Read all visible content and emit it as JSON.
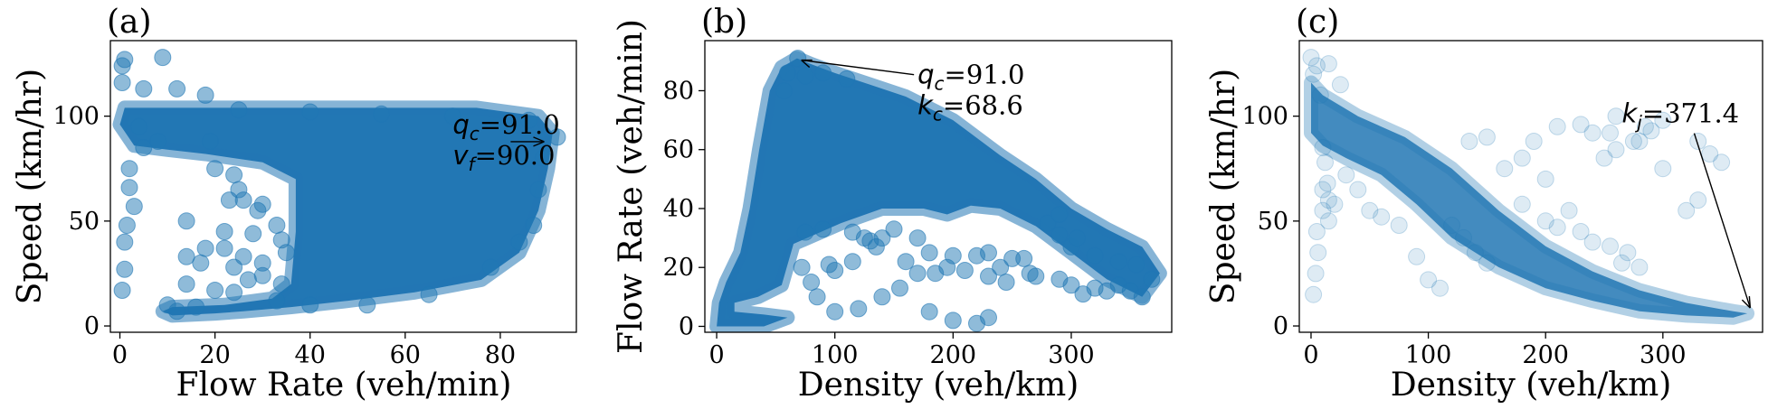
{
  "chart_data": [
    {
      "type": "scatter",
      "panel": "(a)",
      "xlabel": "Flow Rate (veh/min)",
      "ylabel": "Speed (km/hr)",
      "xlim": [
        -2,
        96
      ],
      "ylim": [
        -3,
        136
      ],
      "xticks": [
        0,
        20,
        40,
        60,
        80
      ],
      "yticks": [
        0,
        50,
        100
      ],
      "annotation": {
        "line1": "q",
        "sub1": "c",
        "val1": "=91.0",
        "line2": "v",
        "sub2": "f",
        "val2": "=90.0",
        "target": [
          90.0,
          91.0
        ],
        "text_at": [
          70,
          90
        ]
      },
      "series": [
        {
          "values_region": [
            [
              12,
              104
            ],
            [
              28,
              104
            ],
            [
              45,
              104
            ],
            [
              60,
              104
            ],
            [
              75,
              104
            ],
            [
              88,
              100
            ],
            [
              91,
              92
            ],
            [
              90,
              75
            ],
            [
              88,
              55
            ],
            [
              84,
              35
            ],
            [
              76,
              22
            ],
            [
              62,
              16
            ],
            [
              48,
              12
            ],
            [
              36,
              9
            ],
            [
              26,
              7
            ],
            [
              20,
              6
            ],
            [
              11,
              5
            ],
            [
              9,
              7
            ],
            [
              11,
              9
            ],
            [
              22,
              10
            ],
            [
              32,
              13
            ],
            [
              36,
              20
            ],
            [
              37,
              45
            ],
            [
              37,
              70
            ],
            [
              30,
              78
            ],
            [
              18,
              82
            ],
            [
              10,
              84
            ],
            [
              3,
              86
            ],
            [
              0,
              96
            ],
            [
              1,
              104
            ]
          ]
        }
      ],
      "points": [
        [
          0.5,
          124
        ],
        [
          1,
          127
        ],
        [
          9,
          128
        ],
        [
          0.5,
          116
        ],
        [
          5,
          113
        ],
        [
          12,
          113
        ],
        [
          18,
          110
        ],
        [
          2,
          75
        ],
        [
          2,
          66
        ],
        [
          3,
          57
        ],
        [
          1.5,
          48
        ],
        [
          1,
          40
        ],
        [
          1,
          27
        ],
        [
          0.5,
          17
        ],
        [
          4,
          95
        ],
        [
          5,
          85
        ],
        [
          8,
          88
        ],
        [
          20,
          75
        ],
        [
          24,
          72
        ],
        [
          25,
          65
        ],
        [
          26,
          60
        ],
        [
          29,
          55
        ],
        [
          30,
          58
        ],
        [
          33,
          48
        ],
        [
          34,
          41
        ],
        [
          28,
          44
        ],
        [
          23,
          60
        ],
        [
          19,
          88
        ],
        [
          14,
          50
        ],
        [
          22,
          45
        ],
        [
          20,
          17
        ],
        [
          17,
          30
        ],
        [
          14,
          33
        ],
        [
          24,
          28
        ],
        [
          26,
          33
        ],
        [
          18,
          37
        ],
        [
          22,
          37
        ],
        [
          30,
          30
        ],
        [
          34,
          20
        ],
        [
          27,
          22
        ],
        [
          14,
          20
        ],
        [
          24,
          16
        ],
        [
          30,
          24
        ],
        [
          35,
          35
        ],
        [
          33,
          12
        ],
        [
          10,
          10
        ],
        [
          12,
          7
        ],
        [
          16,
          9
        ],
        [
          40,
          10
        ],
        [
          52,
          10
        ],
        [
          65,
          15
        ],
        [
          78,
          28
        ],
        [
          84,
          40
        ],
        [
          87,
          48
        ],
        [
          88,
          65
        ],
        [
          89,
          80
        ],
        [
          92,
          90
        ],
        [
          86,
          98
        ],
        [
          70,
          100
        ],
        [
          55,
          101
        ],
        [
          40,
          102
        ],
        [
          25,
          103
        ]
      ]
    },
    {
      "type": "scatter",
      "panel": "(b)",
      "xlabel": "Density (veh/km)",
      "ylabel": "Flow Rate (veh/min)",
      "xlim": [
        -10,
        385
      ],
      "ylim": [
        -2,
        97
      ],
      "xticks": [
        0,
        100,
        200,
        300
      ],
      "yticks": [
        0,
        20,
        40,
        60,
        80
      ],
      "annotation": {
        "line1": "q",
        "sub1": "c",
        "val1": "=91.0",
        "line2": "k",
        "sub2": "c",
        "val2": "=68.6",
        "target": [
          68.6,
          91.0
        ],
        "text_at": [
          170,
          83
        ]
      },
      "series": [
        {
          "values_region": [
            [
              0,
              0
            ],
            [
              40,
              0
            ],
            [
              60,
              3
            ],
            [
              40,
              4
            ],
            [
              15,
              5
            ],
            [
              15,
              8
            ],
            [
              35,
              10
            ],
            [
              55,
              14
            ],
            [
              65,
              28
            ],
            [
              105,
              35
            ],
            [
              140,
              40
            ],
            [
              175,
              40
            ],
            [
              195,
              38
            ],
            [
              215,
              41
            ],
            [
              240,
              40
            ],
            [
              270,
              34
            ],
            [
              300,
              25
            ],
            [
              330,
              16
            ],
            [
              360,
              10
            ],
            [
              375,
              18
            ],
            [
              360,
              27
            ],
            [
              330,
              33
            ],
            [
              300,
              40
            ],
            [
              270,
              50
            ],
            [
              240,
              58
            ],
            [
              200,
              70
            ],
            [
              160,
              78
            ],
            [
              130,
              82
            ],
            [
              100,
              86
            ],
            [
              80,
              89
            ],
            [
              68,
              91
            ],
            [
              55,
              88
            ],
            [
              45,
              80
            ],
            [
              36,
              60
            ],
            [
              28,
              40
            ],
            [
              20,
              25
            ],
            [
              8,
              15
            ],
            [
              2,
              8
            ]
          ]
        }
      ],
      "points": [
        [
          68.6,
          91
        ],
        [
          75,
          85
        ],
        [
          90,
          86
        ],
        [
          110,
          84
        ],
        [
          60,
          86
        ],
        [
          57,
          80
        ],
        [
          72,
          20
        ],
        [
          80,
          15
        ],
        [
          95,
          21
        ],
        [
          100,
          19
        ],
        [
          115,
          22
        ],
        [
          125,
          30
        ],
        [
          130,
          29
        ],
        [
          140,
          30
        ],
        [
          160,
          22
        ],
        [
          170,
          18
        ],
        [
          185,
          18
        ],
        [
          195,
          20
        ],
        [
          200,
          24
        ],
        [
          210,
          19
        ],
        [
          220,
          24
        ],
        [
          230,
          17
        ],
        [
          240,
          20
        ],
        [
          245,
          15
        ],
        [
          260,
          23
        ],
        [
          265,
          18
        ],
        [
          180,
          5
        ],
        [
          200,
          2
        ],
        [
          220,
          1
        ],
        [
          230,
          3
        ],
        [
          120,
          6
        ],
        [
          140,
          10
        ],
        [
          100,
          5
        ],
        [
          85,
          10
        ],
        [
          155,
          13
        ],
        [
          75,
          32
        ],
        [
          90,
          33
        ],
        [
          115,
          32
        ],
        [
          135,
          27
        ],
        [
          150,
          33
        ],
        [
          170,
          30
        ],
        [
          180,
          25
        ],
        [
          230,
          25
        ],
        [
          250,
          23
        ],
        [
          270,
          17
        ],
        [
          290,
          16
        ],
        [
          300,
          14
        ],
        [
          310,
          11
        ],
        [
          320,
          13
        ],
        [
          330,
          12
        ],
        [
          340,
          14
        ],
        [
          350,
          12
        ],
        [
          360,
          10
        ],
        [
          368,
          16
        ],
        [
          355,
          21
        ],
        [
          340,
          22
        ],
        [
          320,
          24
        ],
        [
          300,
          27
        ],
        [
          290,
          31
        ],
        [
          280,
          35
        ],
        [
          290,
          38
        ],
        [
          305,
          30
        ]
      ]
    },
    {
      "type": "scatter",
      "panel": "(c)",
      "xlabel": "Density (veh/km)",
      "ylabel": "Speed (km/hr)",
      "xlim": [
        -10,
        385
      ],
      "ylim": [
        -3,
        136
      ],
      "xticks": [
        0,
        100,
        200,
        300
      ],
      "yticks": [
        0,
        50,
        100
      ],
      "annotation": {
        "line1": "k",
        "sub1": "j",
        "val1": "=371.4",
        "target": [
          371.4,
          6
        ],
        "text_at": [
          265,
          97
        ]
      },
      "series": [
        {
          "values_region": [
            [
              0,
              116
            ],
            [
              10,
              110
            ],
            [
              40,
              100
            ],
            [
              80,
              90
            ],
            [
              120,
              75
            ],
            [
              160,
              55
            ],
            [
              200,
              38
            ],
            [
              240,
              26
            ],
            [
              280,
              17
            ],
            [
              320,
              11
            ],
            [
              360,
              7
            ],
            [
              372,
              6
            ],
            [
              360,
              4
            ],
            [
              320,
              5
            ],
            [
              280,
              7
            ],
            [
              240,
              12
            ],
            [
              200,
              18
            ],
            [
              160,
              28
            ],
            [
              120,
              42
            ],
            [
              90,
              58
            ],
            [
              60,
              72
            ],
            [
              30,
              80
            ],
            [
              10,
              86
            ],
            [
              0,
              92
            ]
          ]
        }
      ],
      "points": [
        [
          0,
          128
        ],
        [
          5,
          124
        ],
        [
          15,
          125
        ],
        [
          2,
          120
        ],
        [
          25,
          115
        ],
        [
          8,
          110
        ],
        [
          10,
          85
        ],
        [
          12,
          78
        ],
        [
          14,
          68
        ],
        [
          15,
          60
        ],
        [
          10,
          65
        ],
        [
          20,
          58
        ],
        [
          5,
          45
        ],
        [
          6,
          35
        ],
        [
          4,
          25
        ],
        [
          2,
          15
        ],
        [
          10,
          55
        ],
        [
          15,
          50
        ],
        [
          30,
          72
        ],
        [
          40,
          65
        ],
        [
          50,
          55
        ],
        [
          60,
          52
        ],
        [
          75,
          48
        ],
        [
          90,
          33
        ],
        [
          100,
          22
        ],
        [
          110,
          18
        ],
        [
          120,
          48
        ],
        [
          130,
          42
        ],
        [
          140,
          35
        ],
        [
          150,
          30
        ],
        [
          180,
          58
        ],
        [
          200,
          50
        ],
        [
          210,
          47
        ],
        [
          220,
          55
        ],
        [
          230,
          45
        ],
        [
          240,
          40
        ],
        [
          255,
          38
        ],
        [
          265,
          30
        ],
        [
          270,
          35
        ],
        [
          280,
          28
        ],
        [
          260,
          84
        ],
        [
          275,
          88
        ],
        [
          290,
          93
        ],
        [
          300,
          98
        ],
        [
          285,
          95
        ],
        [
          280,
          88
        ],
        [
          330,
          88
        ],
        [
          340,
          82
        ],
        [
          350,
          78
        ],
        [
          330,
          60
        ],
        [
          320,
          55
        ],
        [
          255,
          92
        ],
        [
          240,
          92
        ],
        [
          260,
          100
        ],
        [
          210,
          95
        ],
        [
          190,
          88
        ],
        [
          180,
          80
        ],
        [
          165,
          75
        ],
        [
          150,
          90
        ],
        [
          135,
          88
        ],
        [
          230,
          96
        ],
        [
          250,
          80
        ],
        [
          200,
          70
        ],
        [
          300,
          75
        ]
      ]
    }
  ]
}
